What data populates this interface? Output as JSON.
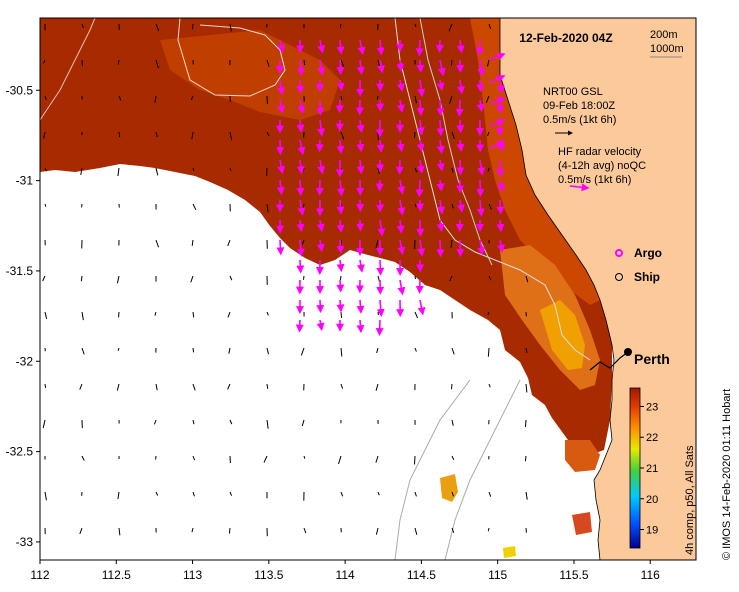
{
  "map": {
    "date_label": "12-Feb-2020 04Z",
    "x_ticks": [
      "112",
      "112.5",
      "113",
      "113.5",
      "114",
      "114.5",
      "115",
      "115.5",
      "116"
    ],
    "y_ticks": [
      "-30.5",
      "-31",
      "-31.5",
      "-32",
      "-32.5",
      "-33"
    ],
    "lon_range": [
      112,
      116.3
    ],
    "lat_range": [
      -33.1,
      -30.1
    ],
    "colors": {
      "land": "#fcc99b",
      "sst_deep": "#a82a00",
      "sst_mid": "#c84400",
      "sst_warm": "#e07a10",
      "sst_hot": "#f0a400",
      "arrow_model": "#000000",
      "arrow_radar": "#ff00ff"
    }
  },
  "legend": {
    "isobaths": [
      "200m",
      "1000m"
    ],
    "model_title": "NRT00 GSL",
    "model_date": "09-Feb 18:00Z",
    "model_scale": "0.5m/s (1kt 6h)",
    "radar_title": "HF radar velocity",
    "radar_sub": "(4-12h avg) noQC",
    "radar_scale": "0.5m/s (1kt 6h)",
    "argo": "Argo",
    "ship": "Ship"
  },
  "place": {
    "perth": "Perth"
  },
  "colorbar": {
    "ticks": [
      "23",
      "22",
      "21",
      "20",
      "19"
    ],
    "label": "4h comp, p50, All Sats"
  },
  "credit": "© IMOS 14-Feb-2020 01:11 Hobart"
}
